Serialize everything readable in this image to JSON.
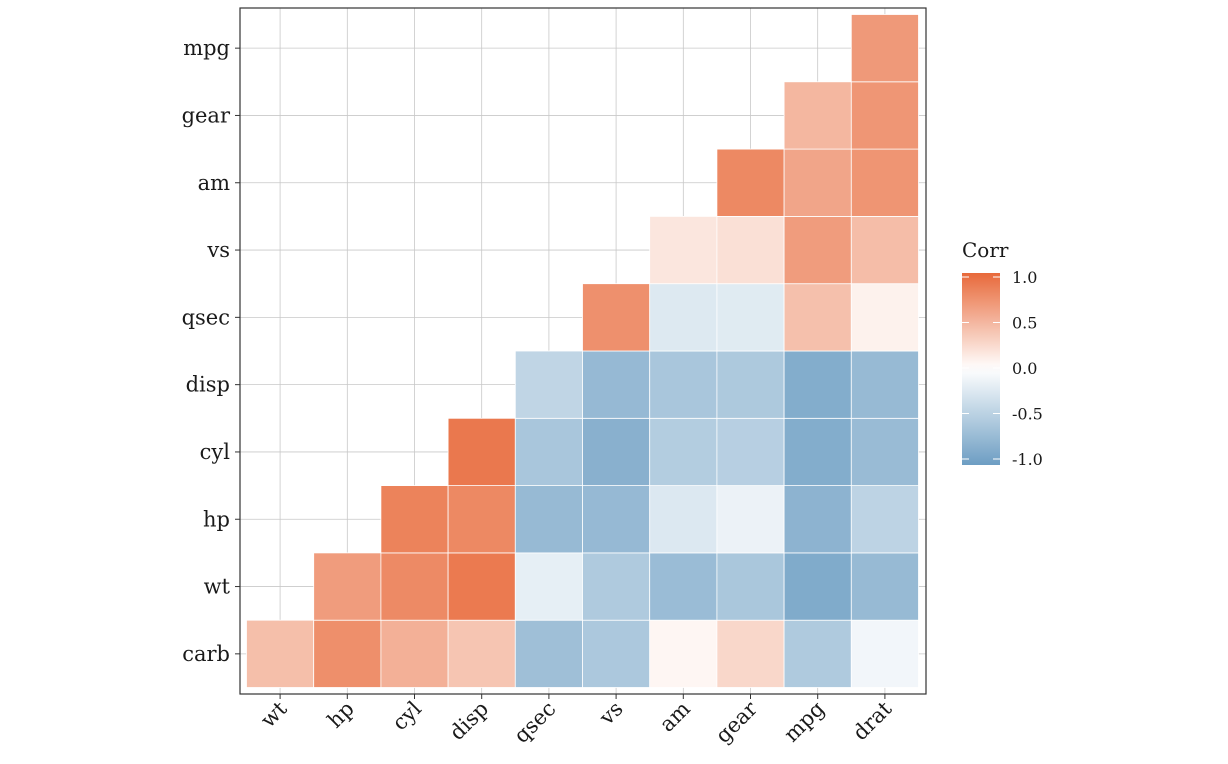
{
  "chart_data": {
    "type": "heatmap",
    "title": "",
    "xlabel": "",
    "ylabel": "",
    "x_categories": [
      "wt",
      "hp",
      "cyl",
      "disp",
      "qsec",
      "vs",
      "am",
      "gear",
      "mpg",
      "drat"
    ],
    "y_categories": [
      "carb",
      "wt",
      "hp",
      "cyl",
      "disp",
      "qsec",
      "vs",
      "am",
      "gear",
      "mpg"
    ],
    "matrix": [
      [
        0.43,
        0.75,
        0.53,
        0.39,
        -0.66,
        -0.57,
        0.06,
        0.27,
        -0.55,
        -0.09
      ],
      [
        null,
        0.66,
        0.78,
        0.89,
        -0.17,
        -0.55,
        -0.69,
        -0.58,
        -0.87,
        -0.71
      ],
      [
        null,
        null,
        0.83,
        0.79,
        -0.71,
        -0.72,
        -0.24,
        -0.13,
        -0.78,
        -0.45
      ],
      [
        null,
        null,
        null,
        0.9,
        -0.59,
        -0.81,
        -0.52,
        -0.49,
        -0.85,
        -0.7
      ],
      [
        null,
        null,
        null,
        null,
        -0.43,
        -0.72,
        -0.59,
        -0.56,
        -0.85,
        -0.71
      ],
      [
        null,
        null,
        null,
        null,
        null,
        0.74,
        -0.23,
        -0.21,
        0.42,
        0.09
      ],
      [
        null,
        null,
        null,
        null,
        null,
        null,
        0.17,
        0.21,
        0.66,
        0.44
      ],
      [
        null,
        null,
        null,
        null,
        null,
        null,
        null,
        0.79,
        0.6,
        0.71
      ],
      [
        null,
        null,
        null,
        null,
        null,
        null,
        null,
        null,
        0.48,
        0.7
      ],
      [
        null,
        null,
        null,
        null,
        null,
        null,
        null,
        null,
        null,
        0.68
      ]
    ],
    "color_scale": {
      "low": "#6d9ec3",
      "mid": "#ffffff",
      "high": "#e8693a",
      "min": -1,
      "max": 1
    },
    "legend": {
      "title": "Corr",
      "ticks": [
        "1.0",
        "0.5",
        "0.0",
        "-0.5",
        "-1.0"
      ],
      "tick_values": [
        1.0,
        0.5,
        0.0,
        -0.5,
        -1.0
      ],
      "placement": "right"
    },
    "grid": true,
    "panel_border": true,
    "x_label_rotation": -45
  }
}
